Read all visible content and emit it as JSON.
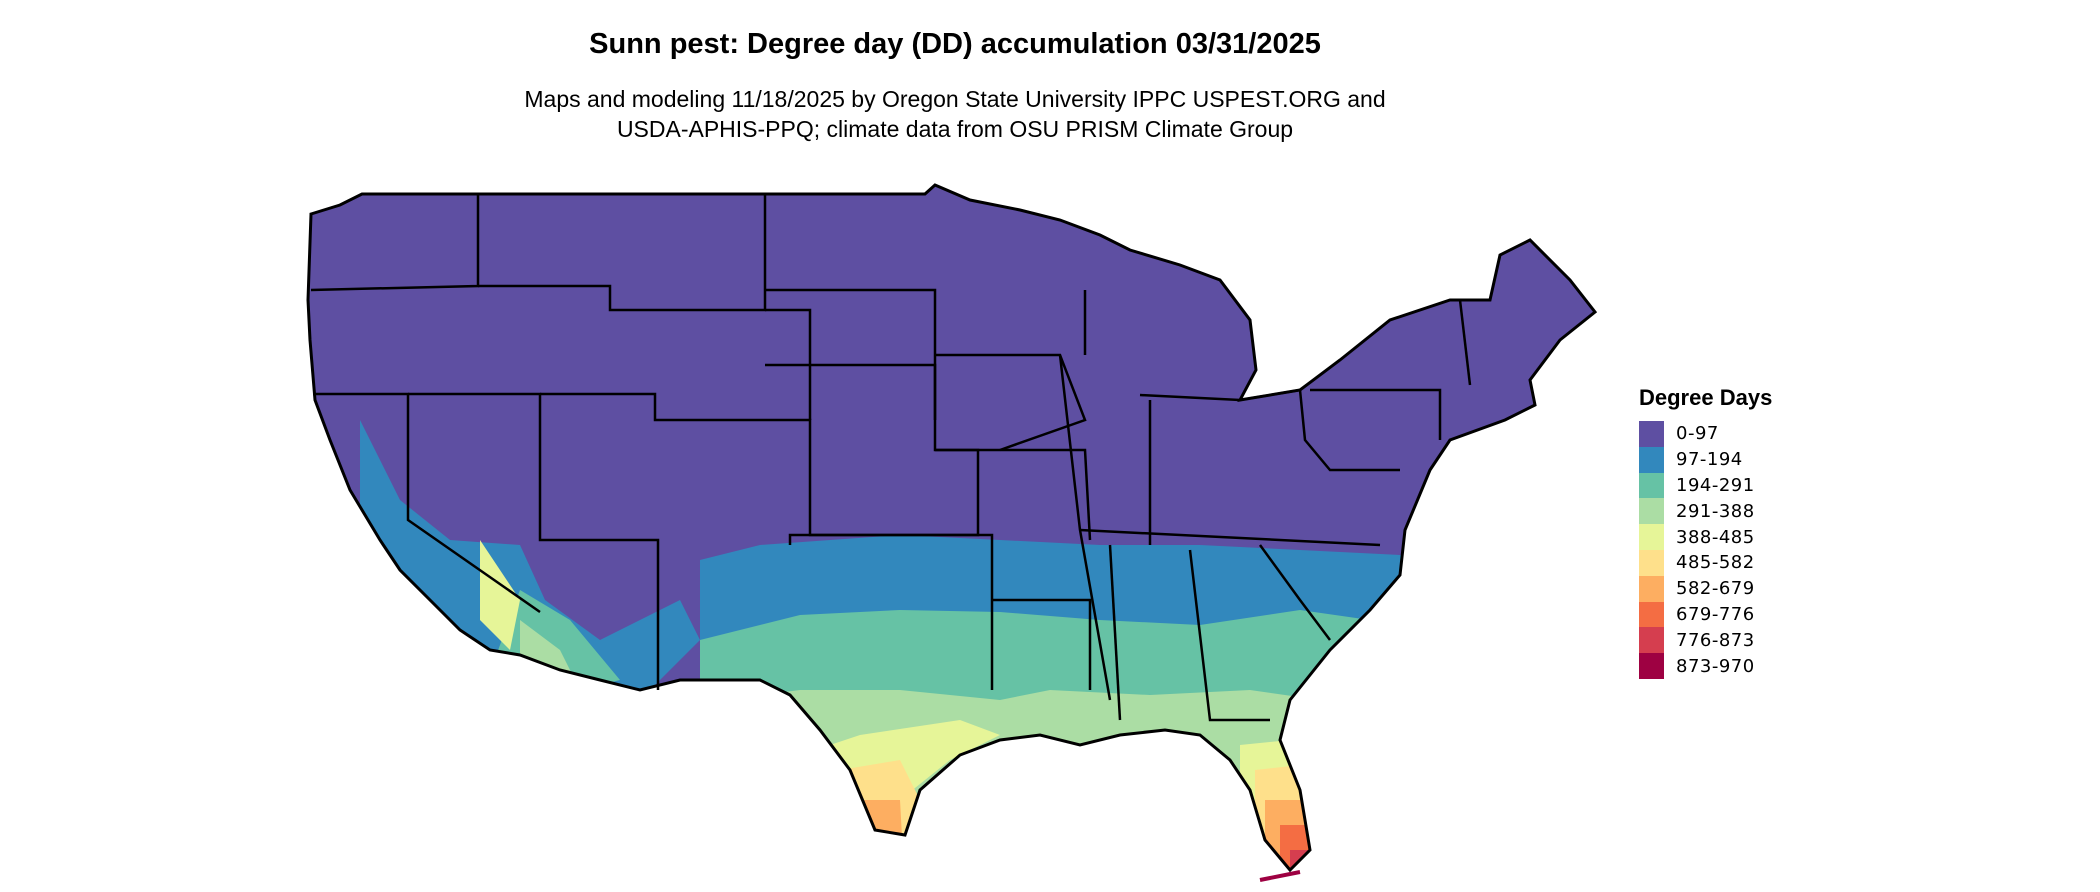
{
  "title": "Sunn pest: Degree day (DD) accumulation 03/31/2025",
  "subtitle_line1": "Maps and modeling 11/18/2025 by Oregon State University IPPC USPEST.ORG and",
  "subtitle_line2": "USDA-APHIS-PPQ; climate data from OSU PRISM Climate Group",
  "legend": {
    "title": "Degree Days",
    "placement": "right",
    "items": [
      {
        "label": "0-97",
        "color": "#5E4FA2"
      },
      {
        "label": "97-194",
        "color": "#3288BD"
      },
      {
        "label": "194-291",
        "color": "#66C2A5"
      },
      {
        "label": "291-388",
        "color": "#ABDDA4"
      },
      {
        "label": "388-485",
        "color": "#E6F598"
      },
      {
        "label": "485-582",
        "color": "#FEE08B"
      },
      {
        "label": "582-679",
        "color": "#FDAE61"
      },
      {
        "label": "679-776",
        "color": "#F46D43"
      },
      {
        "label": "776-873",
        "color": "#D53E4F"
      },
      {
        "label": "873-970",
        "color": "#9E0142"
      }
    ]
  }
}
